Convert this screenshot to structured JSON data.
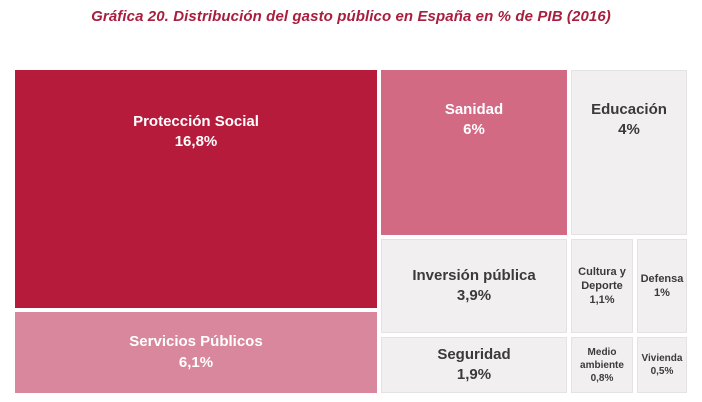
{
  "page": {
    "title": "Gráfica 20. Distribución del gasto público en España en % de PIB (2016)"
  },
  "colors": {
    "title_text": "#a81e3e",
    "dark_red": "#b71b3c",
    "pink": "#d8879c",
    "rose": "#d26a84",
    "light_gray": "#f2eff0",
    "dark_text": "#3a3a3a",
    "light_text": "#ffffff"
  },
  "chart_data": {
    "type": "treemap",
    "title": "Gráfica 20. Distribución del gasto público en España en % de PIB (2016)",
    "unit": "% de PIB",
    "items": [
      {
        "label": "Protección Social",
        "value": 16.8,
        "value_label": "16,8%",
        "color": "#b71b3c",
        "text_color": "#ffffff"
      },
      {
        "label": "Servicios Públicos",
        "value": 6.1,
        "value_label": "6,1%",
        "color": "#d8879c",
        "text_color": "#ffffff"
      },
      {
        "label": "Sanidad",
        "value": 6.0,
        "value_label": "6%",
        "color": "#d26a84",
        "text_color": "#ffffff"
      },
      {
        "label": "Educación",
        "value": 4.0,
        "value_label": "4%",
        "color": "#f2eff0",
        "text_color": "#3a3a3a"
      },
      {
        "label": "Inversión pública",
        "value": 3.9,
        "value_label": "3,9%",
        "color": "#f2eff0",
        "text_color": "#3a3a3a"
      },
      {
        "label": "Seguridad",
        "value": 1.9,
        "value_label": "1,9%",
        "color": "#f2eff0",
        "text_color": "#3a3a3a"
      },
      {
        "label": "Cultura y Deporte",
        "value": 1.1,
        "value_label": "1,1%",
        "color": "#f2eff0",
        "text_color": "#3a3a3a"
      },
      {
        "label": "Defensa",
        "value": 1.0,
        "value_label": "1%",
        "color": "#f2eff0",
        "text_color": "#3a3a3a"
      },
      {
        "label": "Medio ambiente",
        "value": 0.8,
        "value_label": "0,8%",
        "color": "#f2eff0",
        "text_color": "#3a3a3a"
      },
      {
        "label": "Vivienda",
        "value": 0.5,
        "value_label": "0,5%",
        "color": "#f2eff0",
        "text_color": "#3a3a3a"
      }
    ]
  }
}
